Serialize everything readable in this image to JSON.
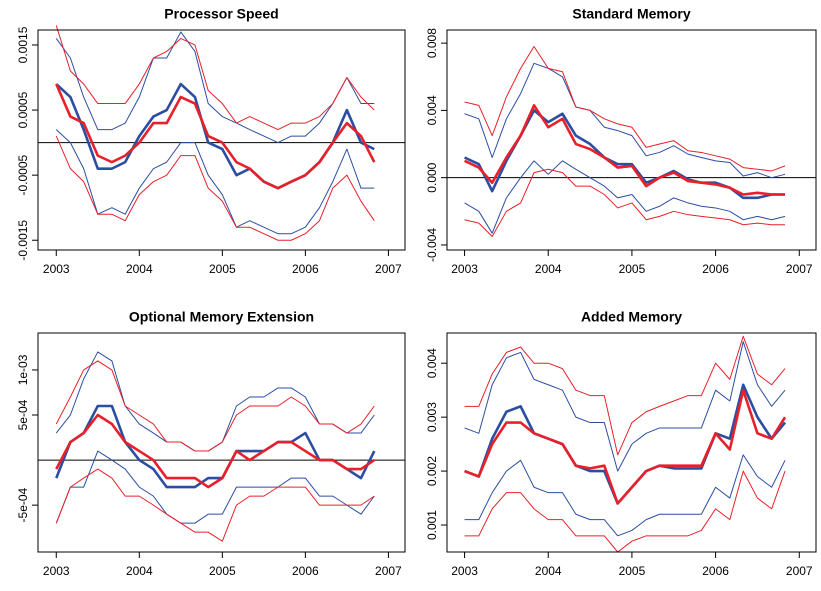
{
  "chart_data": [
    {
      "type": "line",
      "title": "Processor Speed",
      "x": [
        2003,
        2003.17,
        2003.33,
        2003.5,
        2003.67,
        2003.83,
        2004,
        2004.17,
        2004.33,
        2004.5,
        2004.67,
        2004.83,
        2005,
        2005.17,
        2005.33,
        2005.5,
        2005.67,
        2005.83,
        2006,
        2006.17,
        2006.33,
        2006.5,
        2006.67,
        2006.83
      ],
      "xlim": [
        2002.78,
        2007.2
      ],
      "xticks": [
        2003,
        2004,
        2005,
        2006,
        2007
      ],
      "ylim": [
        -0.00165,
        0.00173
      ],
      "yticks": [
        -0.0015,
        -0.0005,
        0.0005,
        0.0015
      ],
      "hline": 0,
      "series": [
        {
          "color": "#2b4ea2",
          "line_width": 1,
          "values": [
            0.0016,
            0.0013,
            0.0007,
            0.0002,
            0.0002,
            0.0003,
            0.0007,
            0.0013,
            0.0013,
            0.0017,
            0.0014,
            0.0006,
            0.0004,
            0.0003,
            0.0002,
            0.0001,
            0,
            0.0001,
            0.0001,
            0.0003,
            0.0006,
            0.001,
            0.0006,
            0.0006
          ]
        },
        {
          "color": "#2b4ea2",
          "line_width": 1,
          "values": [
            0.0002,
            0,
            -0.0004,
            -0.0011,
            -0.001,
            -0.0011,
            -0.0007,
            -0.0004,
            -0.0003,
            0,
            0,
            -0.0005,
            -0.0008,
            -0.0013,
            -0.0012,
            -0.0013,
            -0.0014,
            -0.0014,
            -0.0013,
            -0.001,
            -0.0006,
            -0.0001,
            -0.0007,
            -0.0007
          ]
        },
        {
          "color": "#e8202a",
          "line_width": 1,
          "values": [
            0.0018,
            0.0011,
            0.0009,
            0.0006,
            0.0006,
            0.0006,
            0.0009,
            0.0013,
            0.0014,
            0.0016,
            0.0015,
            0.0008,
            0.0006,
            0.0003,
            0.0004,
            0.0003,
            0.0002,
            0.0003,
            0.0003,
            0.0004,
            0.0006,
            0.001,
            0.0007,
            0.0005
          ]
        },
        {
          "color": "#e8202a",
          "line_width": 1,
          "values": [
            0.0001,
            -0.0004,
            -0.0006,
            -0.0011,
            -0.0011,
            -0.0012,
            -0.0008,
            -0.0006,
            -0.0005,
            -0.0002,
            -0.0002,
            -0.0007,
            -0.0009,
            -0.0013,
            -0.0013,
            -0.0014,
            -0.0015,
            -0.0015,
            -0.0014,
            -0.0012,
            -0.0007,
            -0.0005,
            -0.0009,
            -0.0012
          ]
        },
        {
          "color": "#2b4ea2",
          "line_width": 2.6,
          "values": [
            0.0009,
            0.0007,
            0.0002,
            -0.0004,
            -0.0004,
            -0.0003,
            0.0001,
            0.0004,
            0.0005,
            0.0009,
            0.0007,
            0,
            -0.0001,
            -0.0005,
            -0.0004,
            -0.0006,
            -0.0007,
            -0.0006,
            -0.0005,
            -0.0003,
            0,
            0.0005,
            0,
            -0.0001
          ]
        },
        {
          "color": "#e8202a",
          "line_width": 2.6,
          "values": [
            0.0009,
            0.0004,
            0.0003,
            -0.0002,
            -0.0003,
            -0.0002,
            0,
            0.0003,
            0.0003,
            0.0007,
            0.0006,
            0.0001,
            0,
            -0.0003,
            -0.0004,
            -0.0006,
            -0.0007,
            -0.0006,
            -0.0005,
            -0.0003,
            0,
            0.0003,
            0.0001,
            -0.0003
          ]
        }
      ]
    },
    {
      "type": "line",
      "title": "Standard Memory",
      "x": [
        2003,
        2003.17,
        2003.33,
        2003.5,
        2003.67,
        2003.83,
        2004,
        2004.17,
        2004.33,
        2004.5,
        2004.67,
        2004.83,
        2005,
        2005.17,
        2005.33,
        2005.5,
        2005.67,
        2005.83,
        2006,
        2006.17,
        2006.33,
        2006.5,
        2006.67,
        2006.83
      ],
      "xlim": [
        2002.79,
        2007.2
      ],
      "xticks": [
        2003,
        2004,
        2005,
        2006,
        2007
      ],
      "ylim": [
        -0.0043,
        0.00878
      ],
      "yticks": [
        -0.004,
        {
          "value": 0,
          "label": "0.000"
        },
        0.004,
        0.008
      ],
      "hline": 0,
      "series": [
        {
          "color": "#2b4ea2",
          "line_width": 1,
          "values": [
            0.0038,
            0.0035,
            0.0012,
            0.0035,
            0.005,
            0.0068,
            0.0065,
            0.006,
            0.0042,
            0.004,
            0.003,
            0.0028,
            0.0025,
            0.0013,
            0.0015,
            0.0019,
            0.0014,
            0.0012,
            0.001,
            0.0009,
            0.0001,
            0.0003,
            0,
            0.0002
          ]
        },
        {
          "color": "#2b4ea2",
          "line_width": 1,
          "values": [
            -0.0015,
            -0.002,
            -0.0033,
            -0.0012,
            0,
            0.001,
            0.0002,
            0.001,
            0.0005,
            0,
            -0.0005,
            -0.0012,
            -0.001,
            -0.002,
            -0.0017,
            -0.0012,
            -0.0015,
            -0.0017,
            -0.0018,
            -0.002,
            -0.0025,
            -0.0023,
            -0.0025,
            -0.0023
          ]
        },
        {
          "color": "#e8202a",
          "line_width": 1,
          "values": [
            0.0045,
            0.0043,
            0.0025,
            0.0048,
            0.0065,
            0.0078,
            0.0065,
            0.0063,
            0.0042,
            0.004,
            0.0035,
            0.0032,
            0.003,
            0.0018,
            0.002,
            0.0022,
            0.0016,
            0.0015,
            0.0013,
            0.0011,
            0.0006,
            0.0005,
            0.0004,
            0.0007
          ]
        },
        {
          "color": "#e8202a",
          "line_width": 1,
          "values": [
            -0.0025,
            -0.0027,
            -0.0035,
            -0.002,
            -0.0015,
            0.0003,
            0.0005,
            0.0003,
            -0.0005,
            -0.0005,
            -0.001,
            -0.0018,
            -0.0015,
            -0.0025,
            -0.0023,
            -0.002,
            -0.0022,
            -0.0023,
            -0.0024,
            -0.0025,
            -0.0028,
            -0.0027,
            -0.0028,
            -0.0028
          ]
        },
        {
          "color": "#2b4ea2",
          "line_width": 2.6,
          "values": [
            0.0012,
            0.0008,
            -0.0008,
            0.001,
            0.0025,
            0.004,
            0.0033,
            0.0038,
            0.0025,
            0.002,
            0.0012,
            0.0008,
            0.0008,
            -0.0003,
            0,
            0.0004,
            -0.0001,
            -0.0003,
            -0.0003,
            -0.0006,
            -0.0012,
            -0.0012,
            -0.001,
            -0.001
          ]
        },
        {
          "color": "#e8202a",
          "line_width": 2.6,
          "values": [
            0.001,
            0.0006,
            -0.0003,
            0.0012,
            0.0025,
            0.0043,
            0.003,
            0.0035,
            0.002,
            0.0017,
            0.0012,
            0.0006,
            0.0007,
            -0.0005,
            0,
            0.0003,
            -0.0002,
            -0.0003,
            -0.0004,
            -0.0006,
            -0.001,
            -0.0009,
            -0.001,
            -0.001
          ]
        }
      ]
    },
    {
      "type": "line",
      "title": "Optional Memory Extension",
      "x": [
        2003,
        2003.17,
        2003.33,
        2003.5,
        2003.67,
        2003.83,
        2004,
        2004.17,
        2004.33,
        2004.5,
        2004.67,
        2004.83,
        2005,
        2005.17,
        2005.33,
        2005.5,
        2005.67,
        2005.83,
        2006,
        2006.17,
        2006.33,
        2006.5,
        2006.67,
        2006.83
      ],
      "xlim": [
        2002.78,
        2007.2
      ],
      "xticks": [
        2003,
        2004,
        2005,
        2006,
        2007
      ],
      "ylim": [
        -0.00102,
        0.00141
      ],
      "yticks": [
        {
          "value": -0.0005,
          "label": "-5e-04"
        },
        {
          "value": 0.0005,
          "label": "5e-04"
        },
        {
          "value": 0.001,
          "label": "1e-03"
        }
      ],
      "hline": 0,
      "series": [
        {
          "color": "#2b4ea2",
          "line_width": 1,
          "values": [
            0.0003,
            0.0005,
            0.0009,
            0.0012,
            0.0011,
            0.0006,
            0.0004,
            0.0003,
            0.0002,
            0.0002,
            0.0001,
            0.0001,
            0.0002,
            0.0006,
            0.0007,
            0.0007,
            0.0008,
            0.0008,
            0.0007,
            0.0004,
            0.0004,
            0.0003,
            0.0003,
            0.0005
          ]
        },
        {
          "color": "#2b4ea2",
          "line_width": 1,
          "values": [
            -0.0007,
            -0.0003,
            -0.0003,
            0.0001,
            0,
            -0.0001,
            -0.0003,
            -0.0004,
            -0.0006,
            -0.0007,
            -0.0007,
            -0.0006,
            -0.0006,
            -0.0003,
            -0.0003,
            -0.0003,
            -0.0003,
            -0.0002,
            -0.0002,
            -0.0004,
            -0.0004,
            -0.0005,
            -0.0006,
            -0.0004
          ]
        },
        {
          "color": "#e8202a",
          "line_width": 1,
          "values": [
            0.0004,
            0.0007,
            0.001,
            0.0011,
            0.001,
            0.0006,
            0.0005,
            0.0004,
            0.0002,
            0.0002,
            0.0001,
            0.0001,
            0.0002,
            0.0005,
            0.0006,
            0.0006,
            0.0006,
            0.0007,
            0.0006,
            0.0004,
            0.0004,
            0.0003,
            0.0004,
            0.0006
          ]
        },
        {
          "color": "#e8202a",
          "line_width": 1,
          "values": [
            -0.0007,
            -0.0003,
            -0.0002,
            -0.0001,
            -0.0002,
            -0.0004,
            -0.0004,
            -0.0005,
            -0.0006,
            -0.0007,
            -0.0008,
            -0.0008,
            -0.0009,
            -0.0005,
            -0.0004,
            -0.0004,
            -0.0003,
            -0.0003,
            -0.0003,
            -0.0005,
            -0.0005,
            -0.0005,
            -0.0005,
            -0.0004
          ]
        },
        {
          "color": "#2b4ea2",
          "line_width": 2.6,
          "values": [
            -0.0002,
            0.0002,
            0.0003,
            0.0006,
            0.0006,
            0.0002,
            0,
            -0.0001,
            -0.0003,
            -0.0003,
            -0.0003,
            -0.0002,
            -0.0002,
            0.0001,
            0.0001,
            0.0001,
            0.0002,
            0.0002,
            0.0003,
            0,
            0,
            -0.0001,
            -0.0002,
            0.0001
          ]
        },
        {
          "color": "#e8202a",
          "line_width": 2.6,
          "values": [
            -0.0001,
            0.0002,
            0.0003,
            0.0005,
            0.0004,
            0.0002,
            0.0001,
            0,
            -0.0002,
            -0.0002,
            -0.0002,
            -0.0003,
            -0.0002,
            0.0001,
            0,
            0.0001,
            0.0002,
            0.0002,
            0.0001,
            0,
            0,
            -0.0001,
            -0.0001,
            0
          ]
        }
      ]
    },
    {
      "type": "line",
      "title": "Added Memory",
      "x": [
        2003,
        2003.17,
        2003.33,
        2003.5,
        2003.67,
        2003.83,
        2004,
        2004.17,
        2004.33,
        2004.5,
        2004.67,
        2004.83,
        2005,
        2005.17,
        2005.33,
        2005.5,
        2005.67,
        2005.83,
        2006,
        2006.17,
        2006.33,
        2006.5,
        2006.67,
        2006.83
      ],
      "xlim": [
        2002.79,
        2007.2
      ],
      "xticks": [
        2003,
        2004,
        2005,
        2006,
        2007
      ],
      "ylim": [
        0.0005,
        0.00456
      ],
      "yticks": [
        0.001,
        0.002,
        0.003,
        0.004
      ],
      "series": [
        {
          "color": "#2b4ea2",
          "line_width": 1,
          "values": [
            0.0028,
            0.0027,
            0.0036,
            0.0041,
            0.0042,
            0.0037,
            0.0036,
            0.0035,
            0.003,
            0.0029,
            0.0029,
            0.002,
            0.0025,
            0.0027,
            0.0028,
            0.0028,
            0.0028,
            0.0028,
            0.0035,
            0.0033,
            0.0044,
            0.0036,
            0.0032,
            0.0035
          ]
        },
        {
          "color": "#2b4ea2",
          "line_width": 1,
          "values": [
            0.0011,
            0.0011,
            0.0016,
            0.002,
            0.0022,
            0.0017,
            0.0016,
            0.0016,
            0.0012,
            0.0011,
            0.0011,
            0.0008,
            0.0009,
            0.0011,
            0.0012,
            0.0012,
            0.0012,
            0.0012,
            0.0017,
            0.0015,
            0.0023,
            0.0019,
            0.0017,
            0.0022
          ]
        },
        {
          "color": "#e8202a",
          "line_width": 1,
          "values": [
            0.0032,
            0.0032,
            0.0038,
            0.0042,
            0.0043,
            0.004,
            0.004,
            0.0039,
            0.0035,
            0.0034,
            0.0034,
            0.0023,
            0.0029,
            0.0031,
            0.0032,
            0.0033,
            0.0034,
            0.0034,
            0.004,
            0.0037,
            0.0045,
            0.0038,
            0.0036,
            0.0039
          ]
        },
        {
          "color": "#e8202a",
          "line_width": 1,
          "values": [
            0.0008,
            0.0008,
            0.0013,
            0.0016,
            0.0016,
            0.0013,
            0.0011,
            0.0011,
            0.0008,
            0.0008,
            0.0008,
            0.0005,
            0.0007,
            0.0008,
            0.0008,
            0.0008,
            0.0008,
            0.0009,
            0.0013,
            0.0011,
            0.002,
            0.0015,
            0.0013,
            0.002
          ]
        },
        {
          "color": "#2b4ea2",
          "line_width": 2.6,
          "values": [
            0.002,
            0.0019,
            0.0026,
            0.0031,
            0.0032,
            0.0027,
            0.0026,
            0.0025,
            0.0021,
            0.002,
            0.002,
            0.0014,
            0.0017,
            0.002,
            0.0021,
            0.00205,
            0.00205,
            0.00205,
            0.0027,
            0.0026,
            0.0036,
            0.003,
            0.0026,
            0.0029
          ]
        },
        {
          "color": "#e8202a",
          "line_width": 2.6,
          "values": [
            0.002,
            0.0019,
            0.0025,
            0.0029,
            0.0029,
            0.0027,
            0.0026,
            0.0025,
            0.0021,
            0.00205,
            0.0021,
            0.0014,
            0.0017,
            0.002,
            0.0021,
            0.0021,
            0.0021,
            0.0021,
            0.0027,
            0.0024,
            0.0035,
            0.0027,
            0.0026,
            0.003
          ]
        }
      ]
    }
  ]
}
